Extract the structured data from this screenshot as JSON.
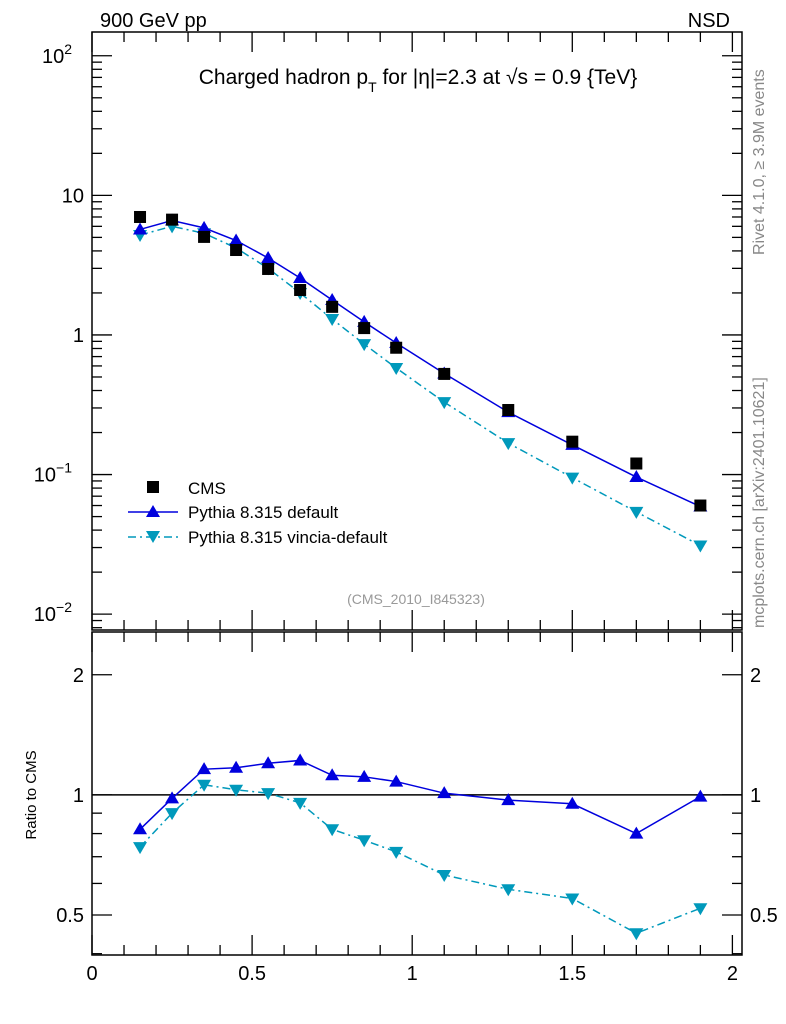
{
  "header": {
    "left": "900 GeV pp",
    "right": "NSD"
  },
  "side_labels": {
    "top": "Rivet 4.1.0, ≥ 3.9M events",
    "bottom": "mcplots.cern.ch [arXiv:2401.10621]"
  },
  "chart_data": [
    {
      "type": "scatter",
      "title": "Charged hadron p_T for |η|=2.3 at √s = 0.9 {TeV}",
      "title_parts": {
        "pre": "Charged hadron p",
        "sub": "T",
        "post": " for |η|=2.3 at √s = 0.9 {TeV}"
      },
      "watermark": "(CMS_2010_I845323)",
      "yscale": "log",
      "xlim": [
        0,
        2.03
      ],
      "ylim": [
        0.0077,
        148
      ],
      "ytick_labels": [
        {
          "value": 0.01,
          "base": "10",
          "exp": "−2"
        },
        {
          "value": 0.1,
          "base": "10",
          "exp": "−1"
        },
        {
          "value": 1,
          "base": "1",
          "exp": ""
        },
        {
          "value": 10,
          "base": "10",
          "exp": ""
        },
        {
          "value": 100,
          "base": "10",
          "exp": "2"
        }
      ],
      "legend_position": "bottom-left",
      "x": [
        0.15,
        0.25,
        0.35,
        0.45,
        0.55,
        0.65,
        0.75,
        0.85,
        0.95,
        1.1,
        1.3,
        1.5,
        1.7,
        1.9
      ],
      "series": [
        {
          "name": "CMS",
          "color": "#000000",
          "marker": "square",
          "line": "none",
          "values": [
            7.0,
            6.7,
            5.04,
            4.06,
            2.97,
            2.1,
            1.59,
            1.12,
            0.81,
            0.526,
            0.29,
            0.172,
            0.12,
            0.06
          ]
        },
        {
          "name": "Pythia 8.315 default",
          "color": "#0000dd",
          "marker": "triangle-up",
          "line": "solid",
          "values": [
            5.7,
            6.6,
            5.85,
            4.75,
            3.56,
            2.56,
            1.78,
            1.24,
            0.875,
            0.53,
            0.28,
            0.163,
            0.096,
            0.059
          ]
        },
        {
          "name": "Pythia 8.315 vincia-default",
          "color": "#0099bb",
          "marker": "triangle-down",
          "line": "dashdot",
          "values": [
            5.2,
            6.0,
            5.35,
            4.2,
            3.0,
            2.0,
            1.3,
            0.86,
            0.58,
            0.33,
            0.168,
            0.095,
            0.054,
            0.031
          ]
        }
      ]
    },
    {
      "type": "line",
      "ylabel": "Ratio to CMS",
      "yscale": "log",
      "xlim": [
        0,
        2.03
      ],
      "ylim": [
        0.397,
        2.56
      ],
      "xtick_labels": [
        "0",
        "0.5",
        "1",
        "1.5",
        "2"
      ],
      "xticks": [
        0,
        0.5,
        1,
        1.5,
        2
      ],
      "ytick_labels": [
        "0.5",
        "1",
        "2"
      ],
      "yticks": [
        0.5,
        1,
        2
      ],
      "reference_line": 1,
      "x": [
        0.15,
        0.25,
        0.35,
        0.45,
        0.55,
        0.65,
        0.75,
        0.85,
        0.95,
        1.1,
        1.3,
        1.5,
        1.7,
        1.9
      ],
      "series": [
        {
          "name": "Pythia 8.315 default",
          "color": "#0000dd",
          "marker": "triangle-up",
          "line": "solid",
          "values": [
            0.82,
            0.98,
            1.16,
            1.17,
            1.2,
            1.22,
            1.12,
            1.11,
            1.08,
            1.01,
            0.97,
            0.95,
            0.8,
            0.99
          ]
        },
        {
          "name": "Pythia 8.315 vincia-default",
          "color": "#0099bb",
          "marker": "triangle-down",
          "line": "dashdot",
          "values": [
            0.74,
            0.9,
            1.06,
            1.03,
            1.01,
            0.955,
            0.82,
            0.77,
            0.72,
            0.63,
            0.58,
            0.55,
            0.45,
            0.52
          ]
        }
      ]
    }
  ]
}
